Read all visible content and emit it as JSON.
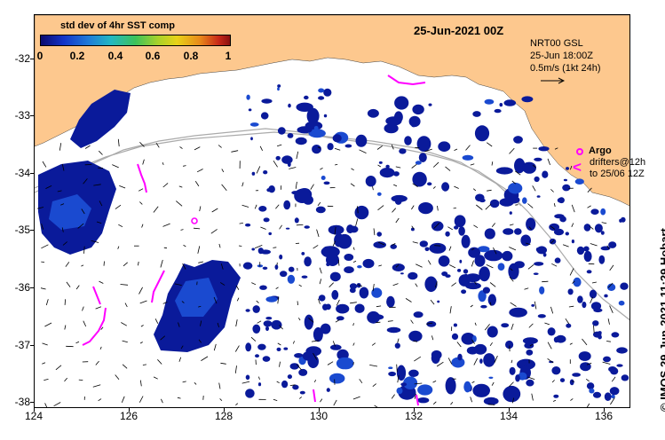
{
  "colorbar": {
    "title": "std dev of 4hr SST comp",
    "ticks": [
      "0",
      "0.2",
      "0.4",
      "0.6",
      "0.8",
      "1"
    ]
  },
  "date_label": "25-Jun-2021 00Z",
  "currents_info": {
    "line1": "NRT00 GSL",
    "line2": "25-Jun 18:00Z",
    "line3": "0.5m/s (1kt 24h)"
  },
  "legend": {
    "argo": "Argo",
    "drifters_line1": "drifters@12h",
    "drifters_line2": "to 25/06 12Z"
  },
  "axes": {
    "lat_labels": [
      "-32",
      "-33",
      "-34",
      "-35",
      "-36",
      "-37",
      "-38"
    ],
    "lon_labels": [
      "124",
      "126",
      "128",
      "130",
      "132",
      "134",
      "136"
    ],
    "lat_range": [
      -38.1,
      -31.3
    ],
    "lon_range": [
      124,
      136.6
    ]
  },
  "credit": "© IMOS 29-Jun-2021 11:29 Hobart",
  "colors": {
    "land": "#fdc88e",
    "high_std": "#0a1a9a",
    "medium_std": "#1a4ad0",
    "argo_drifter": "#ff00ff",
    "bathymetry": "#aaaaaa"
  },
  "argo_floats": [
    {
      "lon": 127.3,
      "lat": -34.82
    }
  ]
}
